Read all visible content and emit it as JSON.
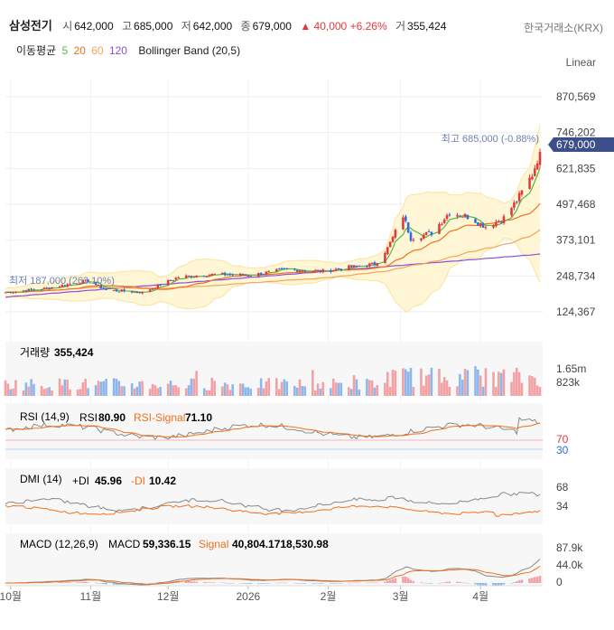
{
  "header": {
    "name": "삼성전기",
    "open_label": "시",
    "open": "642,000",
    "high_label": "고",
    "high": "685,000",
    "low_label": "저",
    "low": "642,000",
    "close_label": "종",
    "close": "679,000",
    "change": "▲ 40,000",
    "change_pct": "+6.26%",
    "volume_label": "거",
    "volume": "355,424",
    "exchange": "한국거래소(KRX)"
  },
  "ma_legend": {
    "label": "이동평균",
    "p5": "5",
    "p20": "20",
    "p60": "60",
    "p120": "120",
    "bollinger": "Bollinger Band (20,5)"
  },
  "scale_mode": "Linear",
  "colors": {
    "up": "#e5383b",
    "down": "#2f6fd6",
    "ma5": "#55b94a",
    "ma20": "#f2701c",
    "ma60": "#f5a45b",
    "ma120": "#8a4fd8",
    "bollinger": "#fae39a",
    "current_price": "#3d4f8a",
    "volume_up": "#f2a0a4",
    "volume_down": "#8db7ea",
    "rsi": "#888888",
    "rsi_signal": "#f2701c",
    "macd": "#888888",
    "signal": "#f2701c"
  },
  "price_chart": {
    "y_ticks": [
      "870,569",
      "746,202",
      "621,835",
      "497,468",
      "373,101",
      "248,734",
      "124,367"
    ],
    "current_price": "679,000",
    "max_label": "최고 685,000 (-0.88%)",
    "min_label": "최저 187,000 (263.10%)"
  },
  "volume_panel": {
    "label": "거래량",
    "value": "355,424",
    "y_ticks": [
      "1.65m",
      "823k"
    ]
  },
  "rsi_panel": {
    "label": "RSI (14,9)",
    "rsi_label": "RSI",
    "rsi_value": "80.90",
    "signal_label": "RSI-Signal",
    "signal_value": "71.10",
    "y_ticks": [
      "70",
      "30"
    ]
  },
  "dmi_panel": {
    "label": "DMI (14)",
    "pdi_label": "+DI",
    "pdi_value": "45.96",
    "mdi_label": "-DI",
    "mdi_value": "10.42",
    "y_ticks": [
      "68",
      "34"
    ]
  },
  "macd_panel": {
    "label": "MACD (12,26,9)",
    "macd_label": "MACD",
    "macd_value": "59,336.15",
    "signal_label": "Signal",
    "signal_value": "40,804.1718,530.98",
    "y_ticks": [
      "87.9k",
      "44.0k",
      "0"
    ]
  },
  "x_axis": {
    "labels": [
      "10월",
      "11월",
      "12월",
      "2026",
      "2월",
      "3월",
      "4월"
    ]
  },
  "chart_data": {
    "type": "candlestick",
    "y_range": [
      90000,
      930000
    ],
    "close_series": [
      {
        "x": "2025-09-29",
        "close": 192000
      },
      {
        "x": "2025-10-14",
        "close": 205000
      },
      {
        "x": "2025-10-31",
        "close": 232000
      },
      {
        "x": "2025-11-07",
        "close": 200000
      },
      {
        "x": "2025-11-21",
        "close": 192000
      },
      {
        "x": "2025-12-05",
        "close": 245000
      },
      {
        "x": "2025-12-19",
        "close": 255000
      },
      {
        "x": "2026-01-02",
        "close": 252000
      },
      {
        "x": "2026-01-16",
        "close": 272000
      },
      {
        "x": "2026-01-30",
        "close": 265000
      },
      {
        "x": "2026-02-10",
        "close": 280000
      },
      {
        "x": "2026-02-19",
        "close": 290000
      },
      {
        "x": "2026-02-24",
        "close": 345000
      },
      {
        "x": "2026-03-02",
        "close": 458000
      },
      {
        "x": "2026-03-05",
        "close": 380000
      },
      {
        "x": "2026-03-13",
        "close": 398000
      },
      {
        "x": "2026-03-20",
        "close": 470000
      },
      {
        "x": "2026-03-27",
        "close": 455000
      },
      {
        "x": "2026-04-03",
        "close": 420000
      },
      {
        "x": "2026-04-10",
        "close": 450000
      },
      {
        "x": "2026-04-15",
        "close": 510000
      },
      {
        "x": "2026-04-21",
        "close": 600000
      },
      {
        "x": "2026-04-24",
        "close": 679000
      }
    ]
  }
}
